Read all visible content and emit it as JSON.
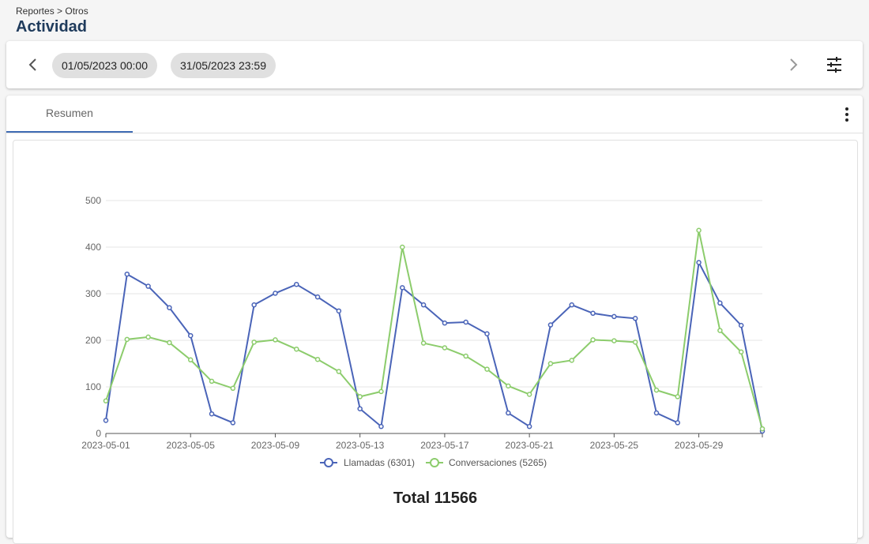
{
  "breadcrumb": "Reportes > Otros",
  "title": "Actividad",
  "toolbar": {
    "prev_icon": "chevron-left-icon",
    "next_icon": "chevron-right-icon",
    "filter_icon": "tune-icon",
    "date_start": "01/05/2023 00:00",
    "date_end": "31/05/2023 23:59"
  },
  "tabs": [
    {
      "label": "Resumen",
      "active": true
    }
  ],
  "menu_icon": "more-vert-icon",
  "total_label": "Total 11566",
  "colors": {
    "llamadas": "#4a64b8",
    "conversaciones": "#8ccc6c",
    "accent": "#3f6cb4"
  },
  "chart_data": {
    "type": "line",
    "title": "",
    "xlabel": "",
    "ylabel": "",
    "ylim": [
      0,
      500
    ],
    "yticks": [
      0,
      100,
      200,
      300,
      400,
      500
    ],
    "x": [
      "2023-05-01",
      "2023-05-02",
      "2023-05-03",
      "2023-05-04",
      "2023-05-05",
      "2023-05-06",
      "2023-05-07",
      "2023-05-08",
      "2023-05-09",
      "2023-05-10",
      "2023-05-11",
      "2023-05-12",
      "2023-05-13",
      "2023-05-14",
      "2023-05-15",
      "2023-05-16",
      "2023-05-17",
      "2023-05-18",
      "2023-05-19",
      "2023-05-20",
      "2023-05-21",
      "2023-05-22",
      "2023-05-23",
      "2023-05-24",
      "2023-05-25",
      "2023-05-26",
      "2023-05-27",
      "2023-05-28",
      "2023-05-29",
      "2023-05-30",
      "2023-05-31",
      "2023-06-01"
    ],
    "xtick_labels": [
      "2023-05-01",
      "2023-05-05",
      "2023-05-09",
      "2023-05-13",
      "2023-05-17",
      "2023-05-21",
      "2023-05-25",
      "2023-05-29"
    ],
    "grid": true,
    "legend_position": "bottom",
    "series": [
      {
        "name": "Llamadas (6301)",
        "values": [
          28,
          342,
          316,
          270,
          210,
          42,
          23,
          276,
          301,
          320,
          293,
          263,
          53,
          15,
          313,
          276,
          237,
          239,
          214,
          44,
          15,
          233,
          276,
          258,
          251,
          247,
          44,
          23,
          367,
          280,
          232,
          5
        ]
      },
      {
        "name": "Conversaciones (5265)",
        "values": [
          70,
          202,
          207,
          195,
          158,
          112,
          97,
          196,
          201,
          181,
          159,
          133,
          79,
          90,
          400,
          194,
          184,
          166,
          138,
          102,
          84,
          150,
          157,
          201,
          199,
          196,
          93,
          79,
          436,
          221,
          175,
          10
        ]
      }
    ]
  }
}
